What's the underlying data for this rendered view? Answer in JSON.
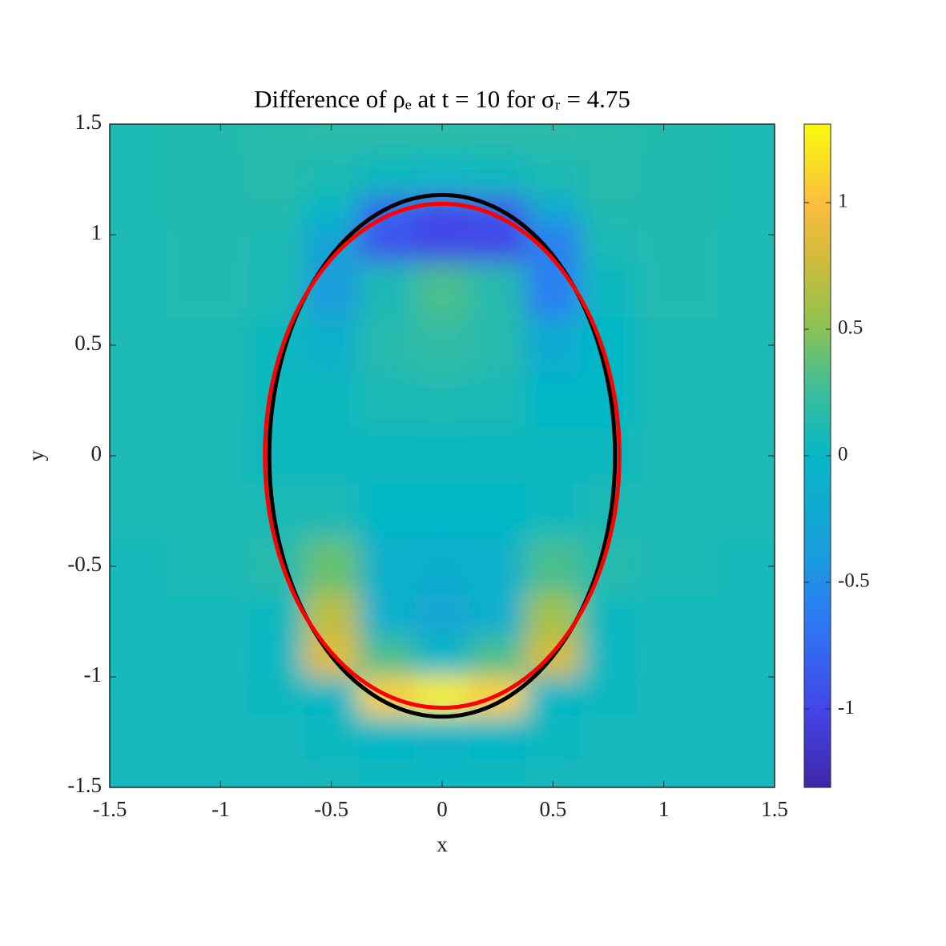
{
  "chart_data": {
    "type": "heatmap",
    "title": "Difference of ρₑ at t = 10 for σᵣ = 4.75",
    "xlabel": "x",
    "ylabel": "y",
    "xlim": [
      -1.5,
      1.5
    ],
    "ylim": [
      -1.5,
      1.5
    ],
    "xticks": [
      -1.5,
      -1,
      -0.5,
      0,
      0.5,
      1,
      1.5
    ],
    "yticks": [
      -1.5,
      -1,
      -0.5,
      0,
      0.5,
      1,
      1.5
    ],
    "colormap": "parula",
    "clim": [
      -1.31,
      1.31
    ],
    "cticks": [
      -1,
      -0.5,
      0,
      0.5,
      1
    ],
    "x": [
      -1.5,
      -1.0,
      -0.75,
      -0.5,
      -0.25,
      0,
      0.25,
      0.5,
      0.75,
      1.0,
      1.5
    ],
    "y": [
      1.5,
      1.25,
      1.1,
      1.0,
      0.75,
      0.5,
      0.25,
      0,
      -0.25,
      -0.5,
      -0.75,
      -0.9,
      -1.1,
      -1.25,
      -1.5
    ],
    "z": [
      [
        0.12,
        0.14,
        0.16,
        0.17,
        0.18,
        0.18,
        0.18,
        0.17,
        0.16,
        0.14,
        0.12
      ],
      [
        0.12,
        0.14,
        0.15,
        0.12,
        0.05,
        0.02,
        0.05,
        0.12,
        0.15,
        0.14,
        0.12
      ],
      [
        0.12,
        0.14,
        0.14,
        0.0,
        -0.8,
        -1.0,
        -0.9,
        -0.2,
        0.14,
        0.14,
        0.12
      ],
      [
        0.12,
        0.13,
        0.12,
        -0.3,
        -0.9,
        -1.0,
        -1.0,
        -0.6,
        0.1,
        0.13,
        0.12
      ],
      [
        0.12,
        0.13,
        0.1,
        -0.4,
        0.1,
        0.3,
        0.15,
        -0.6,
        0.05,
        0.13,
        0.12
      ],
      [
        0.12,
        0.12,
        0.05,
        -0.1,
        0.15,
        0.2,
        0.15,
        -0.2,
        0.0,
        0.12,
        0.12
      ],
      [
        0.12,
        0.12,
        0.05,
        0.05,
        0.1,
        0.12,
        0.1,
        0.0,
        0.0,
        0.12,
        0.12
      ],
      [
        0.1,
        0.1,
        0.05,
        0.05,
        0.05,
        0.05,
        0.05,
        0.05,
        0.05,
        0.1,
        0.1
      ],
      [
        0.1,
        0.1,
        0.1,
        0.1,
        0.0,
        0.0,
        0.0,
        0.05,
        0.1,
        0.1,
        0.1
      ],
      [
        0.08,
        0.1,
        0.15,
        0.4,
        -0.1,
        -0.15,
        -0.1,
        0.3,
        0.15,
        0.1,
        0.08
      ],
      [
        0.08,
        0.08,
        0.05,
        0.7,
        -0.1,
        -0.25,
        -0.1,
        0.6,
        0.05,
        0.08,
        0.08
      ],
      [
        0.08,
        0.08,
        0.02,
        0.85,
        0.3,
        0.0,
        0.3,
        0.8,
        0.02,
        0.08,
        0.08
      ],
      [
        0.06,
        0.06,
        0.05,
        0.0,
        1.1,
        1.25,
        1.1,
        0.0,
        0.05,
        0.06,
        0.06
      ],
      [
        0.06,
        0.06,
        0.06,
        0.04,
        0.0,
        -0.05,
        0.0,
        0.04,
        0.06,
        0.06,
        0.06
      ],
      [
        0.06,
        0.06,
        0.06,
        0.06,
        0.04,
        0.03,
        0.04,
        0.06,
        0.06,
        0.06,
        0.06
      ]
    ],
    "contours": [
      {
        "color": "#000000",
        "center": [
          0,
          0
        ],
        "rx": 0.78,
        "ry": 1.18
      },
      {
        "color": "#ff0000",
        "center": [
          0,
          0
        ],
        "rx": 0.8,
        "ry": 1.14
      }
    ]
  }
}
